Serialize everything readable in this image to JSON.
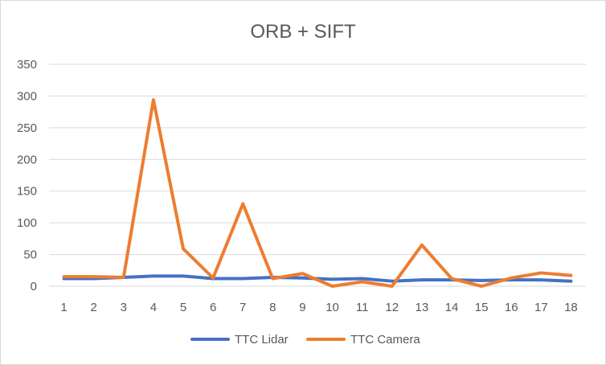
{
  "chart_data": {
    "type": "line",
    "title": "ORB + SIFT",
    "xlabel": "",
    "ylabel": "",
    "categories": [
      "1",
      "2",
      "3",
      "4",
      "5",
      "6",
      "7",
      "8",
      "9",
      "10",
      "11",
      "12",
      "13",
      "14",
      "15",
      "16",
      "17",
      "18"
    ],
    "ylim": [
      0,
      350
    ],
    "yticks": [
      0,
      50,
      100,
      150,
      200,
      250,
      300,
      350
    ],
    "grid": true,
    "legend_position": "bottom",
    "series": [
      {
        "name": "TTC Lidar",
        "color": "#4472c4",
        "values": [
          12,
          12,
          14,
          16,
          16,
          12,
          12,
          14,
          13,
          11,
          12,
          8,
          10,
          10,
          9,
          10,
          10,
          8
        ]
      },
      {
        "name": "TTC Camera",
        "color": "#ed7d31",
        "values": [
          15,
          15,
          14,
          294,
          59,
          13,
          130,
          12,
          20,
          0,
          7,
          0,
          65,
          12,
          0,
          13,
          21,
          17
        ]
      }
    ]
  }
}
